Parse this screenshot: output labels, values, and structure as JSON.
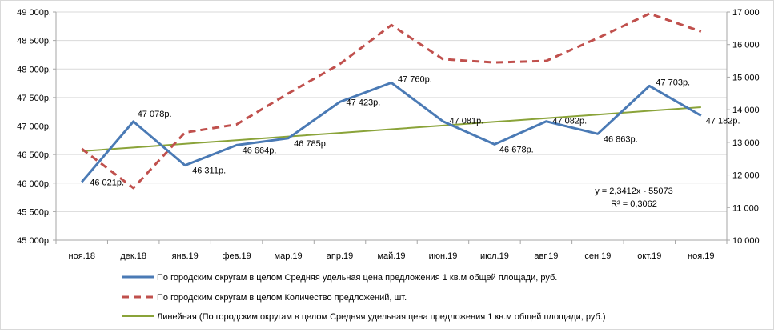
{
  "chart_data": {
    "type": "line",
    "categories": [
      "ноя.18",
      "дек.18",
      "янв.19",
      "фев.19",
      "мар.19",
      "апр.19",
      "май.19",
      "июн.19",
      "июл.19",
      "авг.19",
      "сен.19",
      "окт.19",
      "ноя.19"
    ],
    "y_left": {
      "range": [
        45000,
        49000
      ],
      "ticks": [
        45000,
        45500,
        46000,
        46500,
        47000,
        47500,
        48000,
        48500,
        49000
      ],
      "tick_labels": [
        "45 000р.",
        "45 500р.",
        "46 000р.",
        "46 500р.",
        "47 000р.",
        "47 500р.",
        "48 000р.",
        "48 500р.",
        "49 000р."
      ]
    },
    "y_right": {
      "range": [
        10000,
        17000
      ],
      "ticks": [
        10000,
        11000,
        12000,
        13000,
        14000,
        15000,
        16000,
        17000
      ],
      "tick_labels": [
        "10 000",
        "11 000",
        "12 000",
        "13 000",
        "14 000",
        "15 000",
        "16 000",
        "17 000"
      ]
    },
    "grid": true,
    "legend_position": "bottom",
    "series": [
      {
        "name": "По городским округам в целом Средняя удельная цена предложения  1 кв.м общей площади, руб.",
        "axis": "left",
        "color": "#4a7ab5",
        "style": "solid",
        "values": [
          46021,
          47078,
          46311,
          46664,
          46785,
          47423,
          47760,
          47081,
          46678,
          47082,
          46863,
          47703,
          47182
        ],
        "data_labels": [
          "46 021р.",
          "47 078р.",
          "46 311р.",
          "46 664р.",
          "46 785р.",
          "47 423р.",
          "47 760р.",
          "47 081р.",
          "46 678р.",
          "47 082р.",
          "46 863р.",
          "47 703р.",
          "47 182р."
        ]
      },
      {
        "name": "По городским округам в целом Количество предложений,  шт.",
        "axis": "right",
        "color": "#c0504d",
        "style": "dashed",
        "values": [
          12800,
          11600,
          13300,
          13550,
          14500,
          15400,
          16600,
          15550,
          15450,
          15500,
          16200,
          16950,
          16400
        ]
      },
      {
        "name": "Линейная (По городским округам в целом Средняя удельная цена предложения  1 кв.м общей площади, руб.)",
        "axis": "left",
        "color": "#8aa339",
        "style": "solid",
        "trendline": true,
        "values": [
          46559,
          46623,
          46688,
          46752,
          46816,
          46880,
          46944,
          47009,
          47073,
          47137,
          47201,
          47266,
          47330
        ]
      }
    ],
    "annotations": {
      "equation": "y = 2,3412x - 55073",
      "r_squared": "R² = 0,3062"
    }
  }
}
